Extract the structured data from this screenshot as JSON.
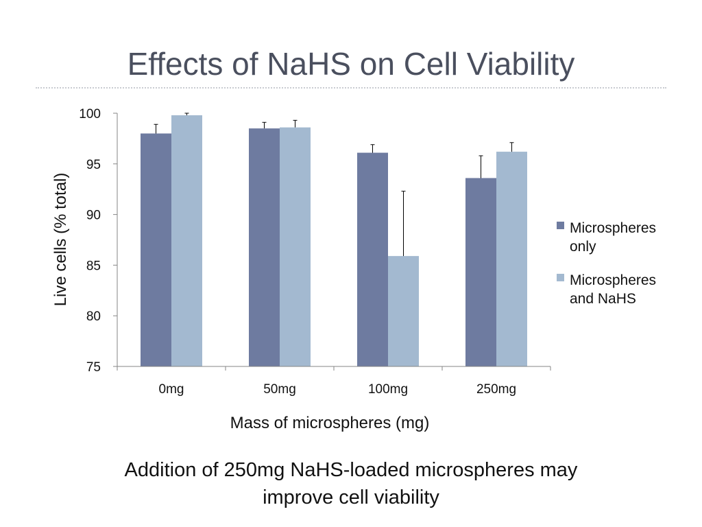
{
  "slide": {
    "title": "Effects of NaHS on Cell Viability",
    "caption_line1": "Addition of 250mg NaHS-loaded microspheres may",
    "caption_line2": "improve cell viability"
  },
  "chart_data": {
    "type": "bar",
    "title": "",
    "xlabel": "Mass of microspheres (mg)",
    "ylabel": "Live cells (% total)",
    "categories": [
      "0mg",
      "50mg",
      "100mg",
      "250mg"
    ],
    "ylim": [
      75,
      100
    ],
    "yticks": [
      75,
      80,
      85,
      90,
      95,
      100
    ],
    "grid": false,
    "legend_position": "right",
    "series": [
      {
        "name": "Microspheres only",
        "legend_lines": [
          "Microspheres",
          "only"
        ],
        "color": "#6e7ba0",
        "values": [
          98.0,
          98.5,
          96.1,
          93.6
        ],
        "errors": [
          0.9,
          0.6,
          0.8,
          2.2
        ]
      },
      {
        "name": "Microspheres and NaHS",
        "legend_lines": [
          "Microspheres",
          "and NaHS"
        ],
        "color": "#a3b9d0",
        "values": [
          99.8,
          98.6,
          85.9,
          96.2
        ],
        "errors": [
          0.2,
          0.7,
          6.4,
          0.9
        ]
      }
    ]
  }
}
